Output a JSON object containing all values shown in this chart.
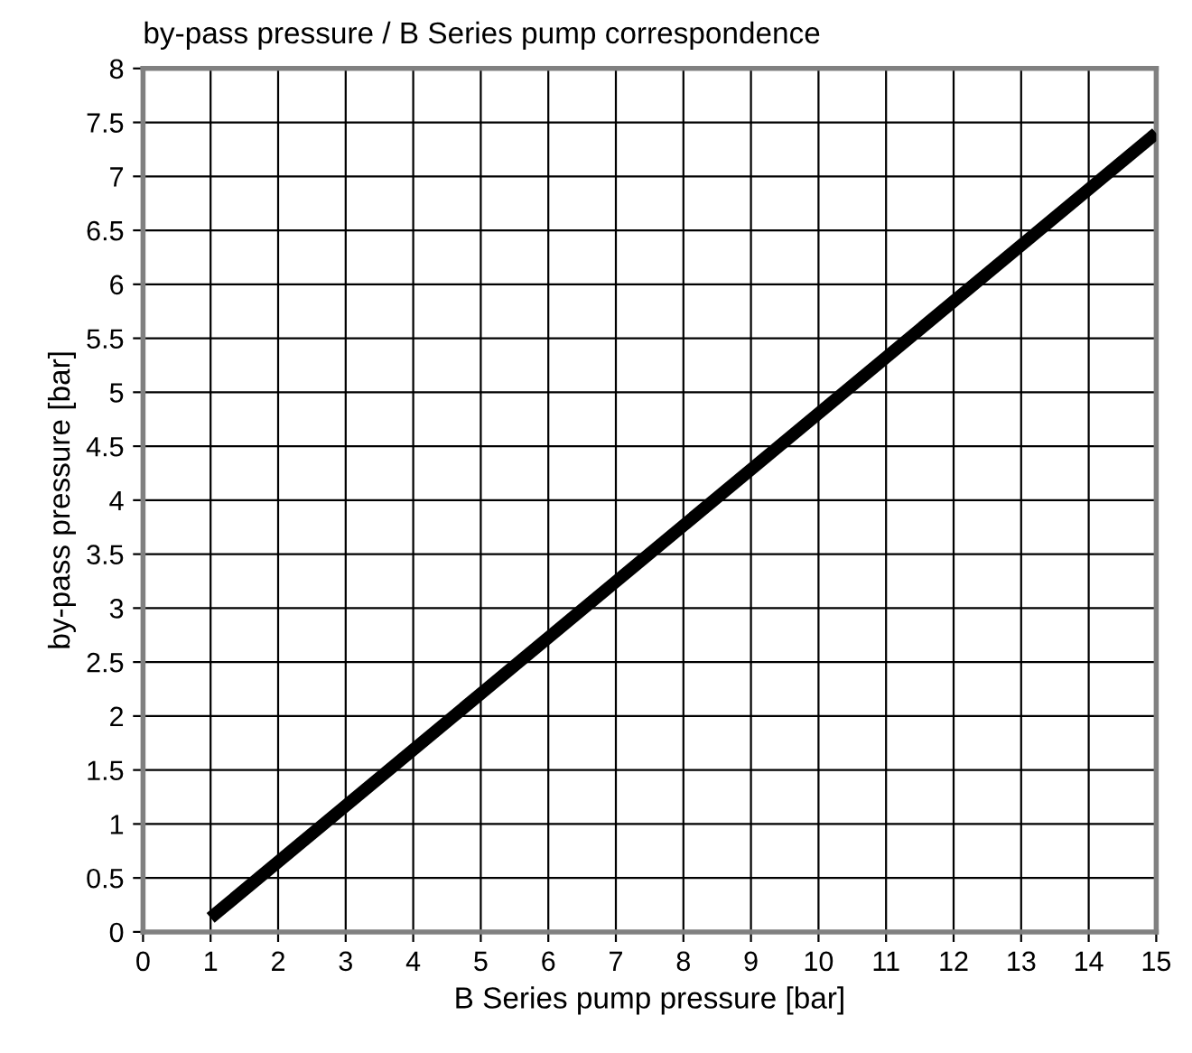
{
  "chart_data": {
    "type": "line",
    "title": "by-pass pressure / B Series pump correspondence",
    "xlabel": "B Series pump pressure [bar]",
    "ylabel": "by-pass pressure [bar]",
    "series": [
      {
        "color": "#000000",
        "x": [
          1,
          15
        ],
        "values": [
          0.13,
          7.4
        ]
      }
    ],
    "xlim": [
      0,
      15
    ],
    "xticks": [
      0,
      1,
      2,
      3,
      4,
      5,
      6,
      7,
      8,
      9,
      10,
      11,
      12,
      13,
      14,
      15
    ],
    "ylim": [
      0,
      8
    ],
    "yticks": [
      0,
      0.5,
      1,
      1.5,
      2,
      2.5,
      3,
      3.5,
      4,
      4.5,
      5,
      5.5,
      6,
      6.5,
      7,
      7.5,
      8
    ],
    "grid": true,
    "marker": "none",
    "line_style": "solid",
    "legend": false
  }
}
